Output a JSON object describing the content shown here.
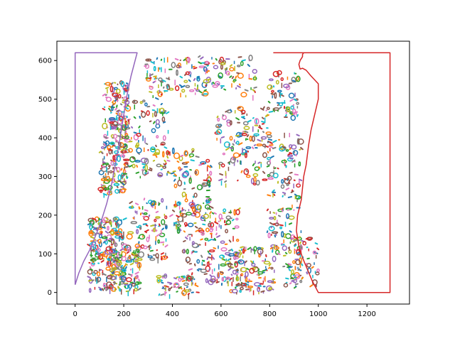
{
  "chart_data": {
    "type": "line",
    "title": "",
    "xlabel": "",
    "ylabel": "",
    "xlim": [
      -75,
      1375
    ],
    "ylim": [
      -30,
      650
    ],
    "xticks": [
      0,
      200,
      400,
      600,
      800,
      1000,
      1200
    ],
    "yticks": [
      0,
      100,
      200,
      300,
      400,
      500,
      600
    ],
    "grid": false,
    "legend": "none",
    "colors": [
      "#1f77b4",
      "#ff7f0e",
      "#2ca02c",
      "#d62728",
      "#9467bd",
      "#8c564b",
      "#e377c2",
      "#7f7f7f",
      "#bcbd22",
      "#17becf"
    ],
    "series": [
      {
        "color": "#9467bd",
        "x": [
          0,
          0,
          255,
          230,
          210,
          195,
          180,
          165,
          150,
          130,
          105,
          80,
          60,
          35,
          15,
          0
        ],
        "y": [
          20,
          620,
          620,
          560,
          500,
          440,
          380,
          330,
          280,
          230,
          180,
          140,
          110,
          80,
          50,
          20
        ]
      },
      {
        "color": "#d62728",
        "x": [
          815,
          1295,
          1295,
          1000,
          975,
          955,
          935,
          920,
          910,
          915,
          930,
          935,
          940,
          950,
          960,
          970,
          985,
          1000,
          1000,
          970,
          950,
          935,
          925,
          920,
          925,
          935,
          935,
          940,
          930,
          915,
          895,
          875,
          845,
          815
        ],
        "y": [
          620,
          620,
          0,
          0,
          30,
          60,
          90,
          120,
          160,
          200,
          240,
          270,
          300,
          330,
          380,
          420,
          460,
          500,
          540,
          560,
          575,
          580,
          578,
          590,
          600,
          610,
          616,
          620,
          620,
          620,
          620,
          620,
          620,
          620
        ]
      }
    ],
    "clusters": [
      {
        "x": 130,
        "y": 100,
        "w": 140,
        "h": 190,
        "n": 260
      },
      {
        "x": 160,
        "y": 330,
        "w": 110,
        "h": 150,
        "n": 150
      },
      {
        "x": 170,
        "y": 480,
        "w": 100,
        "h": 130,
        "n": 110
      },
      {
        "x": 200,
        "y": 60,
        "w": 130,
        "h": 120,
        "n": 110
      },
      {
        "x": 300,
        "y": 400,
        "w": 180,
        "h": 200,
        "n": 120
      },
      {
        "x": 300,
        "y": 160,
        "w": 160,
        "h": 160,
        "n": 110
      },
      {
        "x": 480,
        "y": 260,
        "w": 160,
        "h": 220,
        "n": 130
      },
      {
        "x": 420,
        "y": 560,
        "w": 260,
        "h": 100,
        "n": 120
      },
      {
        "x": 560,
        "y": 120,
        "w": 240,
        "h": 200,
        "n": 160
      },
      {
        "x": 690,
        "y": 380,
        "w": 220,
        "h": 200,
        "n": 150
      },
      {
        "x": 720,
        "y": 60,
        "w": 200,
        "h": 120,
        "n": 130
      },
      {
        "x": 860,
        "y": 260,
        "w": 140,
        "h": 320,
        "n": 140
      },
      {
        "x": 930,
        "y": 80,
        "w": 140,
        "h": 130,
        "n": 90
      },
      {
        "x": 650,
        "y": 560,
        "w": 180,
        "h": 100,
        "n": 60
      },
      {
        "x": 860,
        "y": 510,
        "w": 120,
        "h": 120,
        "n": 70
      },
      {
        "x": 420,
        "y": 20,
        "w": 160,
        "h": 50,
        "n": 60
      }
    ]
  }
}
